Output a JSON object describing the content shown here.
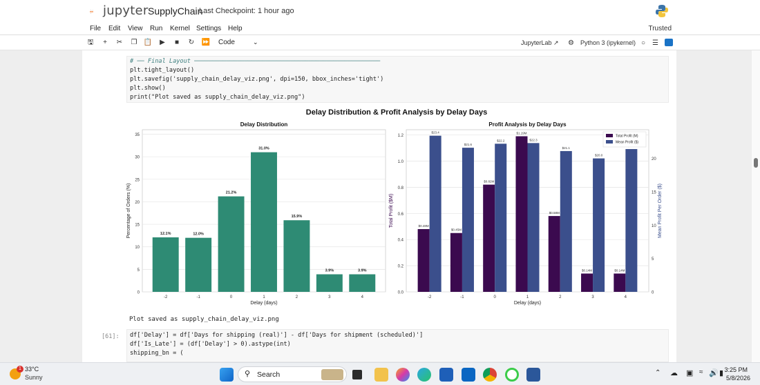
{
  "header": {
    "logo_word": "jupyter",
    "notebook_name": "SupplyChain",
    "checkpoint": "Last Checkpoint: 1 hour ago"
  },
  "menu": {
    "items": [
      "File",
      "Edit",
      "View",
      "Run",
      "Kernel",
      "Settings",
      "Help"
    ],
    "trusted": "Trusted"
  },
  "toolbar": {
    "cell_type": "Code",
    "jupyterlab_link": "JupyterLab",
    "kernel": "Python 3 (ipykernel)"
  },
  "cell1": {
    "lines": [
      "# ── Final Layout ────────────────────────────────────────────────────",
      "plt.tight_layout()",
      "plt.savefig('supply_chain_delay_viz.png', dpi=150, bbox_inches='tight')",
      "plt.show()",
      "print(\"Plot saved as supply_chain_delay_viz.png\")"
    ]
  },
  "output_text": "Plot saved as supply_chain_delay_viz.png",
  "cell2": {
    "prompt": "[61]:",
    "lines": [
      "df['Delay'] = df['Days for shipping (real)'] - df['Days for shipment (scheduled)']",
      "df['Is_Late'] = (df['Delay'] > 0).astype(int)",
      "shipping_bn = ("
    ]
  },
  "figure": {
    "suptitle": "Delay Distribution & Profit Analysis by Delay Days"
  },
  "chart_data": [
    {
      "type": "bar",
      "title": "Delay Distribution",
      "xlabel": "Delay (days)",
      "ylabel": "Percentage of Orders (%)",
      "categories": [
        "-2",
        "-1",
        "0",
        "1",
        "2",
        "3",
        "4"
      ],
      "values": [
        12.1,
        12.0,
        21.2,
        31.0,
        15.9,
        3.9,
        3.9
      ],
      "data_labels": [
        "12.1%",
        "12.0%",
        "21.2%",
        "31.0%",
        "15.9%",
        "3.9%",
        "3.9%"
      ],
      "ylim": [
        0,
        36
      ],
      "yticks": [
        0,
        5,
        10,
        15,
        20,
        25,
        30,
        35
      ],
      "color": "#2e8b74",
      "grid": true
    },
    {
      "type": "bar",
      "title": "Profit Analysis by Delay Days",
      "xlabel": "Delay (days)",
      "ylabel": "Total Profit ($M)",
      "ylabel_right": "Mean Profit Per Order ($)",
      "categories": [
        "-2",
        "-1",
        "0",
        "1",
        "2",
        "3",
        "4"
      ],
      "legend_position": "top-right",
      "grid": true,
      "series": [
        {
          "name": "Total Profit (M)",
          "axis": "left",
          "color": "#3b0a4f",
          "values": [
            0.48,
            0.45,
            0.82,
            1.19,
            0.58,
            0.14,
            0.14
          ],
          "data_labels": [
            "$0.48M",
            "$0.45M",
            "$0.82M",
            "$1.19M",
            "$0.58M",
            "$0.14M",
            "$0.14M"
          ]
        },
        {
          "name": "Mean Profit ($)",
          "axis": "right",
          "color": "#3b4f8c",
          "values": [
            23.4,
            21.6,
            22.2,
            22.3,
            21.1,
            20.0,
            21.4
          ],
          "data_labels": [
            "$23.4",
            "$21.6",
            "$22.2",
            "$22.3",
            "$21.1",
            "$20.0",
            "$21.4"
          ]
        }
      ],
      "ylim_left": [
        0,
        1.24
      ],
      "yticks_left": [
        0,
        0.2,
        0.4,
        0.6,
        0.8,
        1.0,
        1.2
      ],
      "ylim_right": [
        0,
        24.3
      ],
      "yticks_right": [
        0,
        5,
        10,
        15,
        20
      ]
    }
  ],
  "taskbar": {
    "temperature": "33°C",
    "condition": "Sunny",
    "weather_badge": "1",
    "search_label": "Search",
    "time": "3:25 PM",
    "date": "5/8/2026"
  },
  "colors": {
    "accent": "#f37626",
    "teal_bar": "#2e8b74",
    "purple_bar": "#3b0a4f",
    "blue_bar": "#3b4f8c"
  }
}
